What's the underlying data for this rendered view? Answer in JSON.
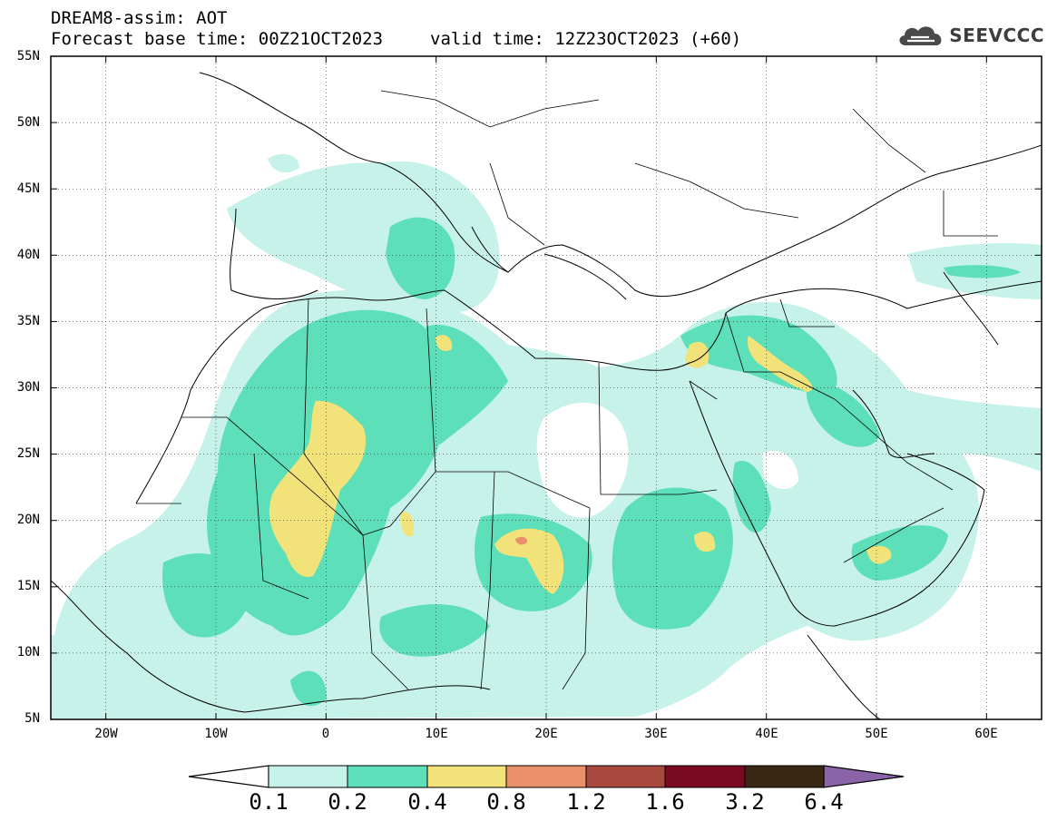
{
  "header": {
    "line1": "DREAM8-assim: AOT",
    "base_time": "Forecast base time: 00Z21OCT2023",
    "valid_time": "valid time: 12Z23OCT2023 (+60)"
  },
  "logo": {
    "icon": "cloud-icon",
    "text": "SEEVCCC"
  },
  "map": {
    "lat_labels": [
      "55N",
      "50N",
      "45N",
      "40N",
      "35N",
      "30N",
      "25N",
      "20N",
      "15N",
      "10N",
      "5N"
    ],
    "lon_labels": [
      "20W",
      "10W",
      "0",
      "10E",
      "20E",
      "30E",
      "40E",
      "50E",
      "60E"
    ],
    "lat_values": [
      55,
      50,
      45,
      40,
      35,
      30,
      25,
      20,
      15,
      10,
      5
    ],
    "lon_values": [
      -20,
      -10,
      0,
      10,
      20,
      30,
      40,
      50,
      60
    ],
    "lon_range": [
      -25,
      65
    ],
    "lat_range": [
      5,
      55
    ],
    "grid": true
  },
  "colorbar": {
    "labels": [
      "0.1",
      "0.2",
      "0.4",
      "0.8",
      "1.2",
      "1.6",
      "3.2",
      "6.4"
    ],
    "colors": [
      "#ffffff",
      "#c6f2e9",
      "#5ddfb9",
      "#f2e27a",
      "#e9906a",
      "#a9483e",
      "#7a0a22",
      "#3b2814",
      "#8a64a8"
    ]
  },
  "colors": {
    "level_01": "#c6f2e9",
    "level_02": "#5ddfb9",
    "level_04": "#f2e27a",
    "level_08": "#e9906a",
    "level_12": "#a9483e"
  }
}
